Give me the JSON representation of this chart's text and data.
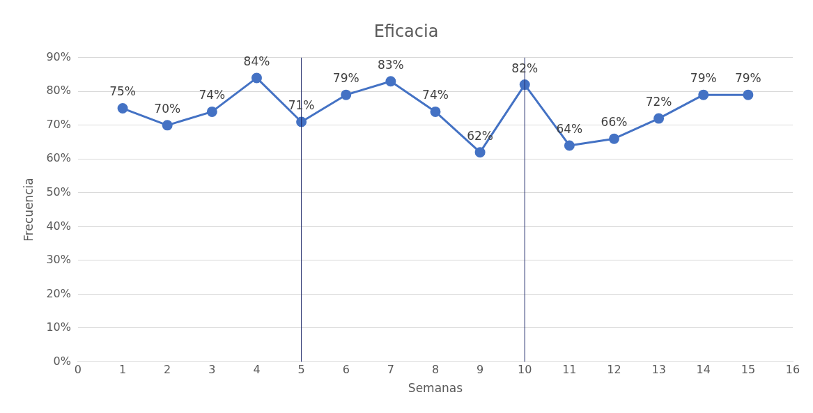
{
  "chart_data": {
    "type": "line",
    "title": "Eficacia",
    "xlabel": "Semanas",
    "ylabel": "Frecuencia",
    "x": [
      1,
      2,
      3,
      4,
      5,
      6,
      7,
      8,
      9,
      10,
      11,
      12,
      13,
      14,
      15
    ],
    "series": [
      {
        "color": "#4472c4",
        "values": [
          75,
          70,
          74,
          84,
          71,
          79,
          83,
          74,
          62,
          82,
          64,
          66,
          72,
          79,
          79
        ],
        "value_labels": [
          "75%",
          "70%",
          "74%",
          "84%",
          "71%",
          "79%",
          "83%",
          "74%",
          "62%",
          "82%",
          "64%",
          "66%",
          "72%",
          "79%",
          "79%"
        ]
      }
    ],
    "xlim": [
      0,
      16
    ],
    "xticks": [
      0,
      1,
      2,
      3,
      4,
      5,
      6,
      7,
      8,
      9,
      10,
      11,
      12,
      13,
      14,
      15,
      16
    ],
    "ylim": [
      0,
      90
    ],
    "yticks": [
      {
        "value": 0,
        "label": "0%"
      },
      {
        "value": 10,
        "label": "10%"
      },
      {
        "value": 20,
        "label": "20%"
      },
      {
        "value": 30,
        "label": "30%"
      },
      {
        "value": 40,
        "label": "40%"
      },
      {
        "value": 50,
        "label": "50%"
      },
      {
        "value": 60,
        "label": "60%"
      },
      {
        "value": 70,
        "label": "70%"
      },
      {
        "value": 80,
        "label": "80%"
      },
      {
        "value": 90,
        "label": "90%"
      }
    ],
    "ref_lines": [
      {
        "axis": "x",
        "value": 5,
        "color": "#1f2a6b"
      },
      {
        "axis": "x",
        "value": 10,
        "color": "#1f2a6b"
      }
    ],
    "grid": "y",
    "marker": "circle",
    "line_style": "solid",
    "legend": false
  }
}
